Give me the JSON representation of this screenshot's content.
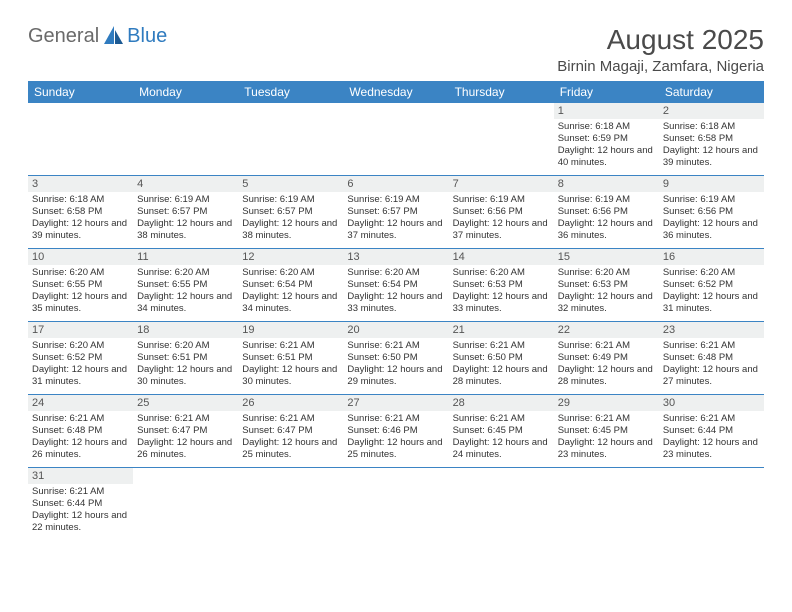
{
  "logo": {
    "text1": "General",
    "text2": "Blue"
  },
  "title": "August 2025",
  "location": "Birnin Magaji, Zamfara, Nigeria",
  "colors": {
    "header_bg": "#3b84c4",
    "header_text": "#ffffff",
    "daynum_bg": "#eef0f0",
    "row_border": "#3b84c4",
    "logo_gray": "#6a6a6a",
    "logo_blue": "#2f7bbf"
  },
  "weekdays": [
    "Sunday",
    "Monday",
    "Tuesday",
    "Wednesday",
    "Thursday",
    "Friday",
    "Saturday"
  ],
  "weeks": [
    [
      null,
      null,
      null,
      null,
      null,
      {
        "n": "1",
        "sr": "6:18 AM",
        "ss": "6:59 PM",
        "dl": "12 hours and 40 minutes."
      },
      {
        "n": "2",
        "sr": "6:18 AM",
        "ss": "6:58 PM",
        "dl": "12 hours and 39 minutes."
      }
    ],
    [
      {
        "n": "3",
        "sr": "6:18 AM",
        "ss": "6:58 PM",
        "dl": "12 hours and 39 minutes."
      },
      {
        "n": "4",
        "sr": "6:19 AM",
        "ss": "6:57 PM",
        "dl": "12 hours and 38 minutes."
      },
      {
        "n": "5",
        "sr": "6:19 AM",
        "ss": "6:57 PM",
        "dl": "12 hours and 38 minutes."
      },
      {
        "n": "6",
        "sr": "6:19 AM",
        "ss": "6:57 PM",
        "dl": "12 hours and 37 minutes."
      },
      {
        "n": "7",
        "sr": "6:19 AM",
        "ss": "6:56 PM",
        "dl": "12 hours and 37 minutes."
      },
      {
        "n": "8",
        "sr": "6:19 AM",
        "ss": "6:56 PM",
        "dl": "12 hours and 36 minutes."
      },
      {
        "n": "9",
        "sr": "6:19 AM",
        "ss": "6:56 PM",
        "dl": "12 hours and 36 minutes."
      }
    ],
    [
      {
        "n": "10",
        "sr": "6:20 AM",
        "ss": "6:55 PM",
        "dl": "12 hours and 35 minutes."
      },
      {
        "n": "11",
        "sr": "6:20 AM",
        "ss": "6:55 PM",
        "dl": "12 hours and 34 minutes."
      },
      {
        "n": "12",
        "sr": "6:20 AM",
        "ss": "6:54 PM",
        "dl": "12 hours and 34 minutes."
      },
      {
        "n": "13",
        "sr": "6:20 AM",
        "ss": "6:54 PM",
        "dl": "12 hours and 33 minutes."
      },
      {
        "n": "14",
        "sr": "6:20 AM",
        "ss": "6:53 PM",
        "dl": "12 hours and 33 minutes."
      },
      {
        "n": "15",
        "sr": "6:20 AM",
        "ss": "6:53 PM",
        "dl": "12 hours and 32 minutes."
      },
      {
        "n": "16",
        "sr": "6:20 AM",
        "ss": "6:52 PM",
        "dl": "12 hours and 31 minutes."
      }
    ],
    [
      {
        "n": "17",
        "sr": "6:20 AM",
        "ss": "6:52 PM",
        "dl": "12 hours and 31 minutes."
      },
      {
        "n": "18",
        "sr": "6:20 AM",
        "ss": "6:51 PM",
        "dl": "12 hours and 30 minutes."
      },
      {
        "n": "19",
        "sr": "6:21 AM",
        "ss": "6:51 PM",
        "dl": "12 hours and 30 minutes."
      },
      {
        "n": "20",
        "sr": "6:21 AM",
        "ss": "6:50 PM",
        "dl": "12 hours and 29 minutes."
      },
      {
        "n": "21",
        "sr": "6:21 AM",
        "ss": "6:50 PM",
        "dl": "12 hours and 28 minutes."
      },
      {
        "n": "22",
        "sr": "6:21 AM",
        "ss": "6:49 PM",
        "dl": "12 hours and 28 minutes."
      },
      {
        "n": "23",
        "sr": "6:21 AM",
        "ss": "6:48 PM",
        "dl": "12 hours and 27 minutes."
      }
    ],
    [
      {
        "n": "24",
        "sr": "6:21 AM",
        "ss": "6:48 PM",
        "dl": "12 hours and 26 minutes."
      },
      {
        "n": "25",
        "sr": "6:21 AM",
        "ss": "6:47 PM",
        "dl": "12 hours and 26 minutes."
      },
      {
        "n": "26",
        "sr": "6:21 AM",
        "ss": "6:47 PM",
        "dl": "12 hours and 25 minutes."
      },
      {
        "n": "27",
        "sr": "6:21 AM",
        "ss": "6:46 PM",
        "dl": "12 hours and 25 minutes."
      },
      {
        "n": "28",
        "sr": "6:21 AM",
        "ss": "6:45 PM",
        "dl": "12 hours and 24 minutes."
      },
      {
        "n": "29",
        "sr": "6:21 AM",
        "ss": "6:45 PM",
        "dl": "12 hours and 23 minutes."
      },
      {
        "n": "30",
        "sr": "6:21 AM",
        "ss": "6:44 PM",
        "dl": "12 hours and 23 minutes."
      }
    ],
    [
      {
        "n": "31",
        "sr": "6:21 AM",
        "ss": "6:44 PM",
        "dl": "12 hours and 22 minutes."
      },
      null,
      null,
      null,
      null,
      null,
      null
    ]
  ],
  "labels": {
    "sunrise": "Sunrise:",
    "sunset": "Sunset:",
    "daylight": "Daylight:"
  }
}
